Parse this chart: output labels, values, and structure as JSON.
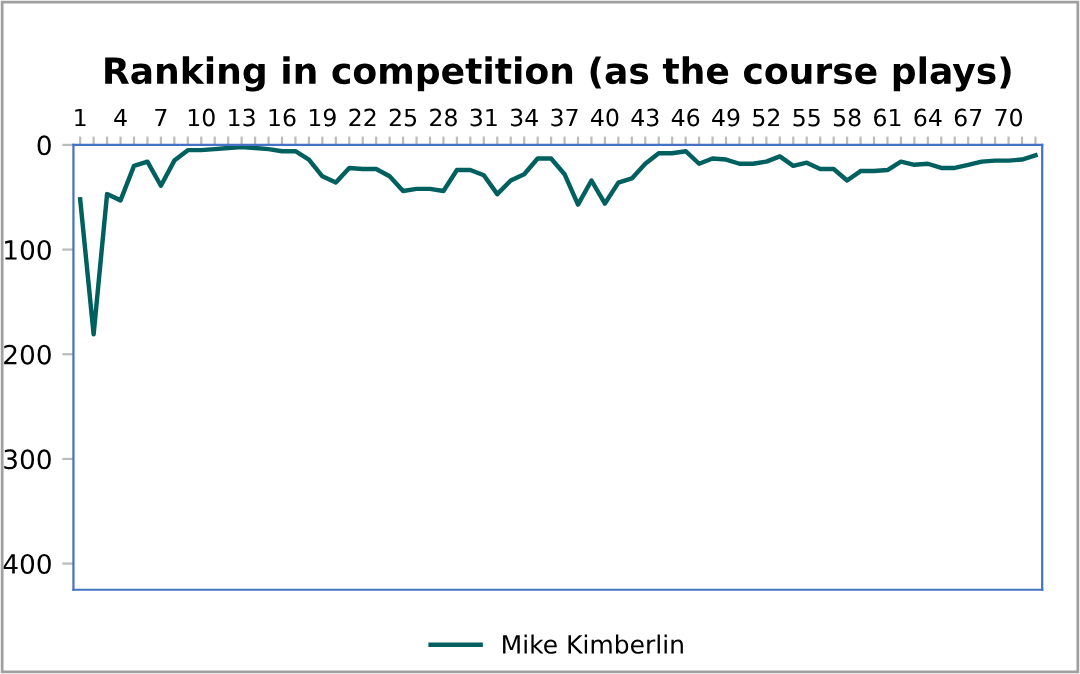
{
  "chart_data": {
    "type": "line",
    "title": "Ranking in competition (as the course plays)",
    "categories": [
      "1",
      null,
      null,
      "4",
      null,
      null,
      "7",
      null,
      null,
      "10",
      null,
      null,
      "13",
      null,
      null,
      "16",
      null,
      null,
      "19",
      null,
      null,
      "22",
      null,
      null,
      "25",
      null,
      null,
      "28",
      null,
      null,
      "31",
      null,
      null,
      "34",
      null,
      null,
      "37",
      null,
      null,
      "40",
      null,
      null,
      "43",
      null,
      null,
      "46",
      null,
      null,
      "49",
      null,
      null,
      "52",
      null,
      null,
      "55",
      null,
      null,
      "58",
      null,
      null,
      "61",
      null,
      null,
      "64",
      null,
      null,
      "67",
      null,
      null,
      "70",
      null,
      null
    ],
    "series": [
      {
        "name": "Mike Kimberlin",
        "color": "#006060",
        "values": [
          52,
          181,
          47,
          53,
          20,
          16,
          39,
          15,
          5,
          5,
          4,
          3,
          2,
          3,
          4,
          6,
          6,
          14,
          30,
          36,
          22,
          23,
          23,
          30,
          44,
          42,
          42,
          44,
          24,
          24,
          29,
          47,
          34,
          28,
          13,
          13,
          28,
          57,
          34,
          56,
          36,
          32,
          18,
          8,
          8,
          6,
          18,
          13,
          14,
          18,
          18,
          16,
          11,
          20,
          17,
          23,
          23,
          34,
          25,
          25,
          24,
          16,
          19,
          18,
          22,
          22,
          19,
          16,
          15,
          15,
          14,
          10
        ]
      }
    ],
    "ylim": [
      425,
      0
    ],
    "yticks": [
      0,
      100,
      200,
      300,
      400
    ],
    "grid": false,
    "legend": "bottom",
    "marker": "none",
    "line_style": "solid"
  }
}
